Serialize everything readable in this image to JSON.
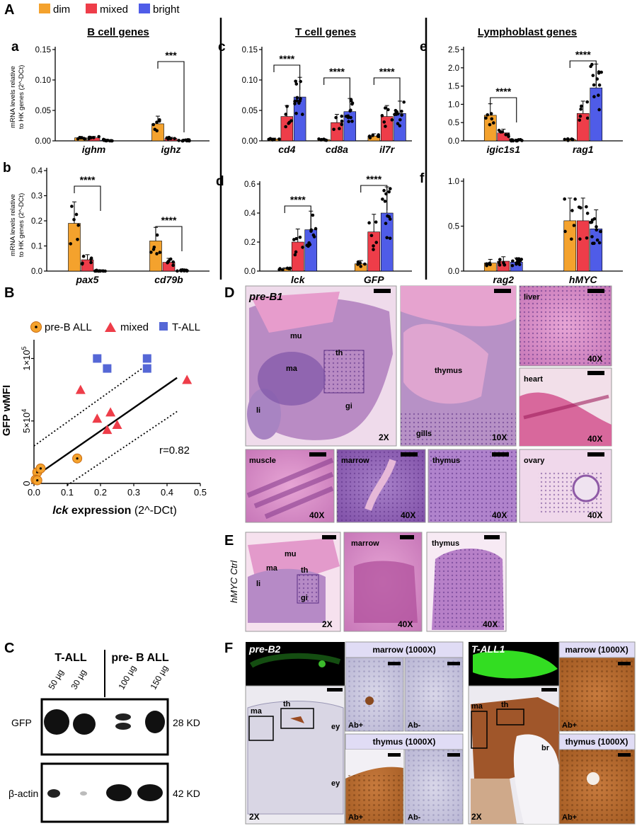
{
  "colors": {
    "dim": "#f4a22d",
    "mixed": "#ee3d49",
    "bright": "#4f5ce8",
    "t_all": "#5567d6",
    "pink": "#d986c6",
    "purple": "#8d5ab0",
    "ihc_brown": "#b8662e",
    "ihc_blue": "#c8c5dd",
    "gfp": "#33dd22"
  },
  "panelA": {
    "letter": "A",
    "legend": [
      {
        "label": "dim",
        "color": "#f4a22d"
      },
      {
        "label": "mixed",
        "color": "#ee3d49"
      },
      {
        "label": "bright",
        "color": "#4f5ce8"
      }
    ],
    "groups": [
      {
        "title": "B cell genes"
      },
      {
        "title": "T cell genes"
      },
      {
        "title": "Lymphoblast genes"
      }
    ],
    "ylabel_line1": "mRNA levels relative",
    "ylabel_line2": "to HK genes (2^-DCt)"
  },
  "chart_data": [
    {
      "id": "a",
      "type": "bar",
      "letter": "a",
      "categories": [
        "ighm",
        "ighz"
      ],
      "series": [
        {
          "name": "dim",
          "values": [
            0.005,
            0.028
          ]
        },
        {
          "name": "mixed",
          "values": [
            0.005,
            0.004
          ]
        },
        {
          "name": "bright",
          "values": [
            0.001,
            0.0005
          ]
        }
      ],
      "ylim": [
        0,
        0.15
      ],
      "yticks": [
        "0.00",
        "0.05",
        "0.10",
        "0.15"
      ],
      "significance": [
        {
          "label": "***"
        }
      ]
    },
    {
      "id": "b",
      "type": "bar",
      "letter": "b",
      "categories": [
        "pax5",
        "cd79b"
      ],
      "series": [
        {
          "name": "dim",
          "values": [
            0.19,
            0.12
          ]
        },
        {
          "name": "mixed",
          "values": [
            0.045,
            0.035
          ]
        },
        {
          "name": "bright",
          "values": [
            0.001,
            0.001
          ]
        }
      ],
      "ylim": [
        0,
        0.4
      ],
      "yticks": [
        "0.0",
        "0.1",
        "0.2",
        "0.3",
        "0.4"
      ],
      "significance": [
        {
          "label": "****"
        },
        {
          "label": "****"
        }
      ]
    },
    {
      "id": "c",
      "type": "bar",
      "letter": "c",
      "categories": [
        "cd4",
        "cd8a",
        "il7r"
      ],
      "series": [
        {
          "name": "dim",
          "values": [
            0.003,
            0.002,
            0.008
          ]
        },
        {
          "name": "mixed",
          "values": [
            0.04,
            0.03,
            0.04
          ]
        },
        {
          "name": "bright",
          "values": [
            0.072,
            0.048,
            0.045
          ]
        }
      ],
      "ylim": [
        0,
        0.15
      ],
      "yticks": [
        "0.00",
        "0.05",
        "0.10",
        "0.15"
      ],
      "significance": [
        {
          "label": "****"
        },
        {
          "label": "****"
        },
        {
          "label": "****"
        }
      ]
    },
    {
      "id": "d",
      "type": "bar",
      "letter": "d",
      "categories": [
        "lck",
        "GFP"
      ],
      "series": [
        {
          "name": "dim",
          "values": [
            0.015,
            0.05
          ]
        },
        {
          "name": "mixed",
          "values": [
            0.2,
            0.27
          ]
        },
        {
          "name": "bright",
          "values": [
            0.285,
            0.4
          ]
        }
      ],
      "ylim": [
        0,
        0.6
      ],
      "yticks": [
        "0.0",
        "0.2",
        "0.4",
        "0.6"
      ],
      "significance": [
        {
          "label": "****"
        },
        {
          "label": "****"
        }
      ]
    },
    {
      "id": "e",
      "type": "bar",
      "letter": "e",
      "categories": [
        "igic1s1",
        "rag1"
      ],
      "series": [
        {
          "name": "dim",
          "values": [
            0.7,
            0.03
          ]
        },
        {
          "name": "mixed",
          "values": [
            0.22,
            0.75
          ]
        },
        {
          "name": "bright",
          "values": [
            0.02,
            1.45
          ]
        }
      ],
      "ylim": [
        0,
        2.5
      ],
      "yticks": [
        "0.0",
        "0.5",
        "1.0",
        "1.5",
        "2.0",
        "2.5"
      ],
      "significance": [
        {
          "label": "****"
        },
        {
          "label": "****"
        }
      ]
    },
    {
      "id": "f",
      "type": "bar",
      "letter": "f",
      "categories": [
        "rag2",
        "hMYC"
      ],
      "series": [
        {
          "name": "dim",
          "values": [
            0.09,
            0.56
          ]
        },
        {
          "name": "mixed",
          "values": [
            0.11,
            0.56
          ]
        },
        {
          "name": "bright",
          "values": [
            0.1,
            0.47
          ]
        }
      ],
      "ylim": [
        0,
        1.0
      ],
      "yticks": [
        "0.0",
        "0.5",
        "1.0"
      ],
      "significance": []
    },
    {
      "id": "B",
      "type": "scatter",
      "letter": "B",
      "legend": [
        {
          "label": "pre-B ALL",
          "marker": "circle"
        },
        {
          "label": "mixed",
          "marker": "triangle"
        },
        {
          "label": "T-ALL",
          "marker": "square"
        }
      ],
      "xlabel_bold": "lck",
      "xlabel_bold2": " expression",
      "xlabel_rest": " (2^-DCt)",
      "ylabel": "GFP wMFI",
      "xlim": [
        0,
        0.5
      ],
      "ylim": [
        0,
        115000
      ],
      "xticks": [
        "0.0",
        "0.1",
        "0.2",
        "0.3",
        "0.4",
        "0.5"
      ],
      "yticks": [
        {
          "v": 0,
          "label": "0"
        },
        {
          "v": 50000,
          "label": "5×10",
          "exp": "4"
        },
        {
          "v": 100000,
          "label": "1×10",
          "exp": "5"
        }
      ],
      "annotation": "r=0.82",
      "points": {
        "pre_b": [
          [
            0.01,
            9000
          ],
          [
            0.02,
            12000
          ],
          [
            0.005,
            3000
          ],
          [
            0.01,
            2500
          ],
          [
            0.13,
            20000
          ]
        ],
        "mixed": [
          [
            0.14,
            75000
          ],
          [
            0.19,
            52000
          ],
          [
            0.23,
            57000
          ],
          [
            0.22,
            43000
          ],
          [
            0.25,
            47000
          ],
          [
            0.46,
            83000
          ]
        ],
        "t_all": [
          [
            0.19,
            100000
          ],
          [
            0.22,
            92000
          ],
          [
            0.34,
            100000
          ],
          [
            0.34,
            92000
          ]
        ]
      },
      "fit": {
        "slope": 185000,
        "intercept": 5000
      }
    }
  ],
  "panelC": {
    "letter": "C",
    "groups": [
      "T-ALL",
      "pre- B ALL"
    ],
    "lanes": [
      "50 µg",
      "30 µg",
      "100 µg",
      "150 µg"
    ],
    "rows": [
      {
        "label": "GFP",
        "kd": "28 KD"
      },
      {
        "label": "β-actin",
        "kd": "42 KD"
      }
    ]
  },
  "panelD": {
    "letter": "D",
    "tiles": [
      {
        "labels": [
          "pre-B1",
          "mu",
          "th",
          "ma",
          "li",
          "gi"
        ],
        "mag": "2X"
      },
      {
        "labels": [
          "thymus",
          "gills"
        ],
        "mag": "10X"
      },
      {
        "labels": [
          "liver"
        ],
        "mag": "40X"
      },
      {
        "labels": [
          "heart"
        ],
        "mag": "40X"
      },
      {
        "labels": [
          "muscle"
        ],
        "mag": "40X"
      },
      {
        "labels": [
          "marrow"
        ],
        "mag": "40X"
      },
      {
        "labels": [
          "thymus"
        ],
        "mag": "40X"
      },
      {
        "labels": [
          "ovary"
        ],
        "mag": "40X"
      }
    ]
  },
  "panelE": {
    "letter": "E",
    "side_label": "hMYC Ctrl",
    "tiles": [
      {
        "labels": [
          "mu",
          "ma",
          "th",
          "li",
          "gi"
        ],
        "mag": "2X"
      },
      {
        "labels": [
          "marrow"
        ],
        "mag": "40X"
      },
      {
        "labels": [
          "thymus"
        ],
        "mag": "40X"
      }
    ]
  },
  "panelF": {
    "letter": "F",
    "left": {
      "title": "pre-B2",
      "whole_labels": [
        "ma",
        "th",
        "ey",
        "ey"
      ],
      "mag": "2X",
      "marrow_header": "marrow (1000X)",
      "thymus_header": "thymus (1000X)",
      "ab_labels": [
        "Ab+",
        "Ab-",
        "Ab+",
        "Ab-"
      ]
    },
    "right": {
      "title": "T-ALL1",
      "whole_labels": [
        "ma",
        "th",
        "br"
      ],
      "mag": "2X",
      "marrow_header": "marrow (1000X)",
      "thymus_header": "thymus (1000X)",
      "ab_labels": [
        "Ab+",
        "Ab+"
      ]
    }
  }
}
